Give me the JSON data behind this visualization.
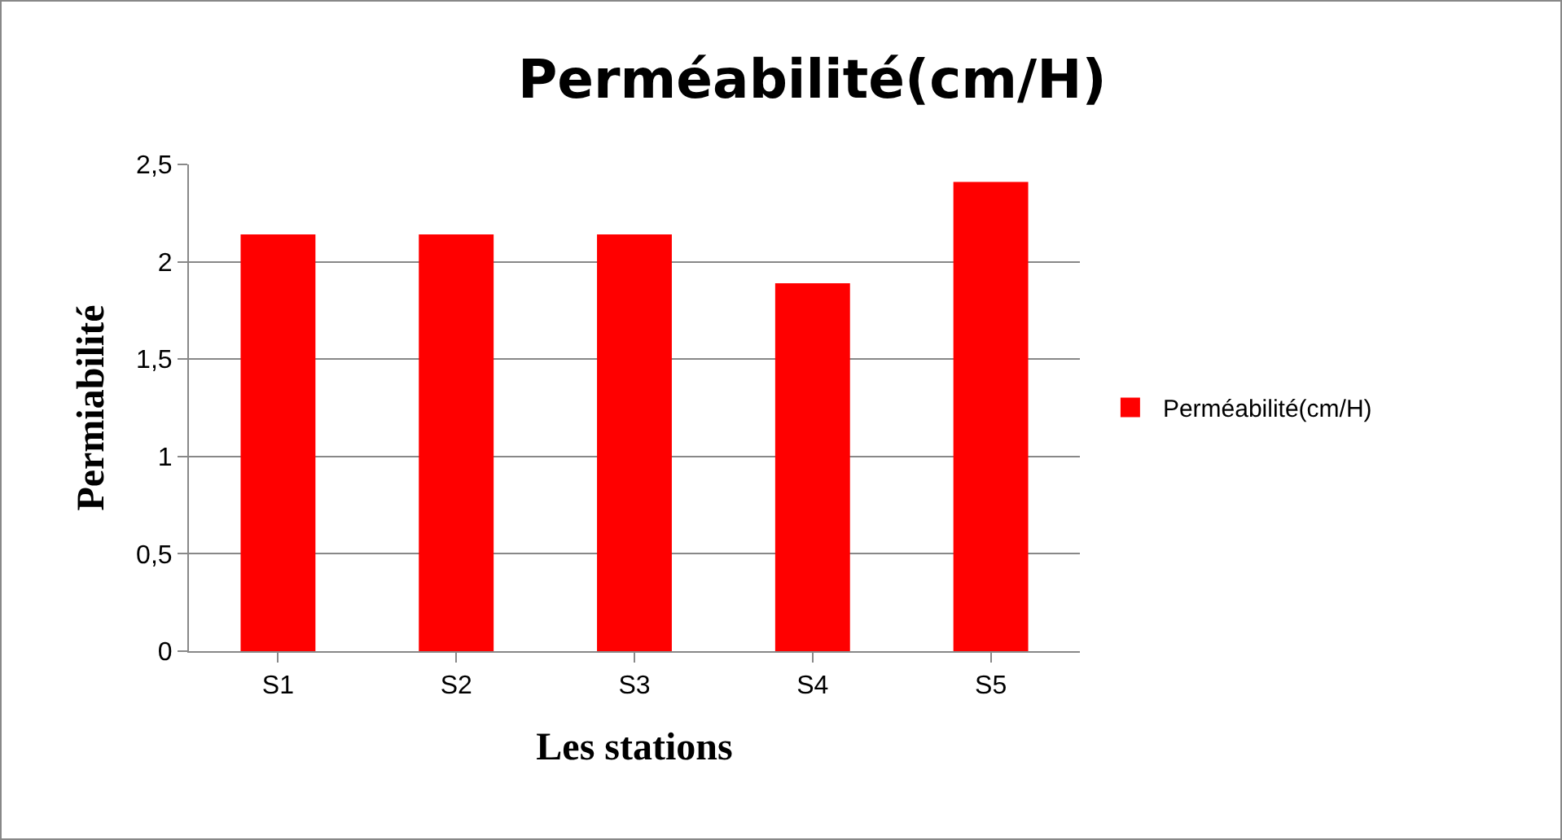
{
  "chart_data": {
    "type": "bar",
    "title": "Perméabilité(cm/H)",
    "xlabel": "Les stations",
    "ylabel": "Permiabilité",
    "categories": [
      "S1",
      "S2",
      "S3",
      "S4",
      "S5"
    ],
    "series": [
      {
        "name": "Perméabilité(cm/H)",
        "color": "#ff0000",
        "values": [
          2.14,
          2.14,
          2.14,
          1.89,
          2.41
        ]
      }
    ],
    "ylim": [
      0,
      2.5
    ],
    "yticks": [
      0,
      {
        "value": 0.5,
        "label": "0,5"
      },
      1,
      {
        "value": 1.5,
        "label": "1,5"
      },
      2,
      {
        "value": 2.5,
        "label": "2,5"
      }
    ],
    "grid": "y",
    "legend": "right"
  }
}
